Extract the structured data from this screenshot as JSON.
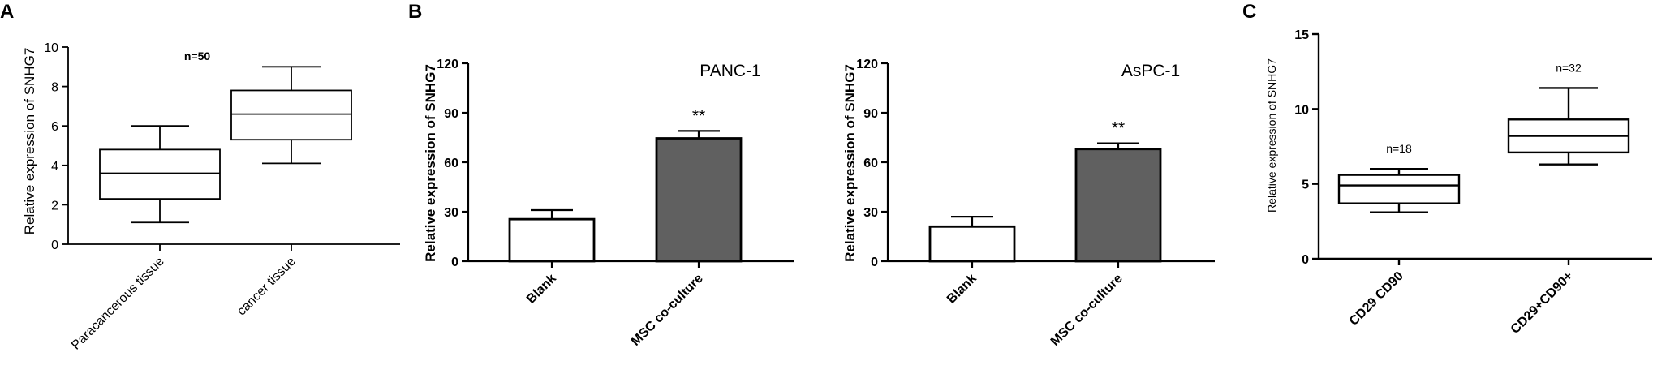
{
  "panels": {
    "A": {
      "letter": "A"
    },
    "B": {
      "letter": "B"
    },
    "C": {
      "letter": "C"
    }
  },
  "chart_data": [
    {
      "id": "A",
      "type": "box",
      "ylabel": "Relative expression of SNHG7",
      "ylim": [
        0,
        10
      ],
      "yticks": [
        0,
        2,
        4,
        6,
        8,
        10
      ],
      "categories": [
        "Paracancerous tissue",
        "cancer tissue"
      ],
      "boxes": [
        {
          "min": 1.1,
          "q1": 2.3,
          "median": 3.6,
          "q3": 4.8,
          "max": 6.0
        },
        {
          "min": 4.1,
          "q1": 5.3,
          "median": 6.6,
          "q3": 7.8,
          "max": 9.0
        }
      ],
      "annotations": [
        {
          "text": "n=50"
        }
      ],
      "grid": false
    },
    {
      "id": "B1",
      "type": "bar",
      "title": "PANC-1",
      "ylabel": "Relative expression of SNHG7",
      "ylim": [
        0,
        120
      ],
      "yticks": [
        0,
        30,
        60,
        90,
        120
      ],
      "categories": [
        "Blank",
        "MSC co-culture"
      ],
      "values": [
        25.5,
        74.5
      ],
      "errors": [
        5.5,
        4.5
      ],
      "colors": [
        "#ffffff",
        "#606060"
      ],
      "annotations": [
        {
          "text": "**"
        }
      ],
      "grid": false
    },
    {
      "id": "B2",
      "type": "bar",
      "title": "AsPC-1",
      "ylabel": "Relative expression of SNHG7",
      "ylim": [
        0,
        120
      ],
      "yticks": [
        0,
        30,
        60,
        90,
        120
      ],
      "categories": [
        "Blank",
        "MSC co-culture"
      ],
      "values": [
        21,
        68
      ],
      "errors": [
        6,
        3.5
      ],
      "colors": [
        "#ffffff",
        "#606060"
      ],
      "annotations": [
        {
          "text": "**"
        }
      ],
      "grid": false
    },
    {
      "id": "C",
      "type": "box",
      "ylabel": "Relative expression of SNHG7",
      "ylim": [
        0,
        15
      ],
      "yticks": [
        0,
        5,
        10,
        15
      ],
      "categories": [
        "CD29 CD90",
        "CD29+CD90+"
      ],
      "boxes": [
        {
          "min": 3.1,
          "q1": 3.7,
          "median": 4.9,
          "q3": 5.6,
          "max": 6.0
        },
        {
          "min": 6.3,
          "q1": 7.1,
          "median": 8.2,
          "q3": 9.3,
          "max": 11.4
        }
      ],
      "annotations": [
        {
          "text": "n=18"
        },
        {
          "text": "n=32"
        }
      ],
      "grid": false
    }
  ]
}
